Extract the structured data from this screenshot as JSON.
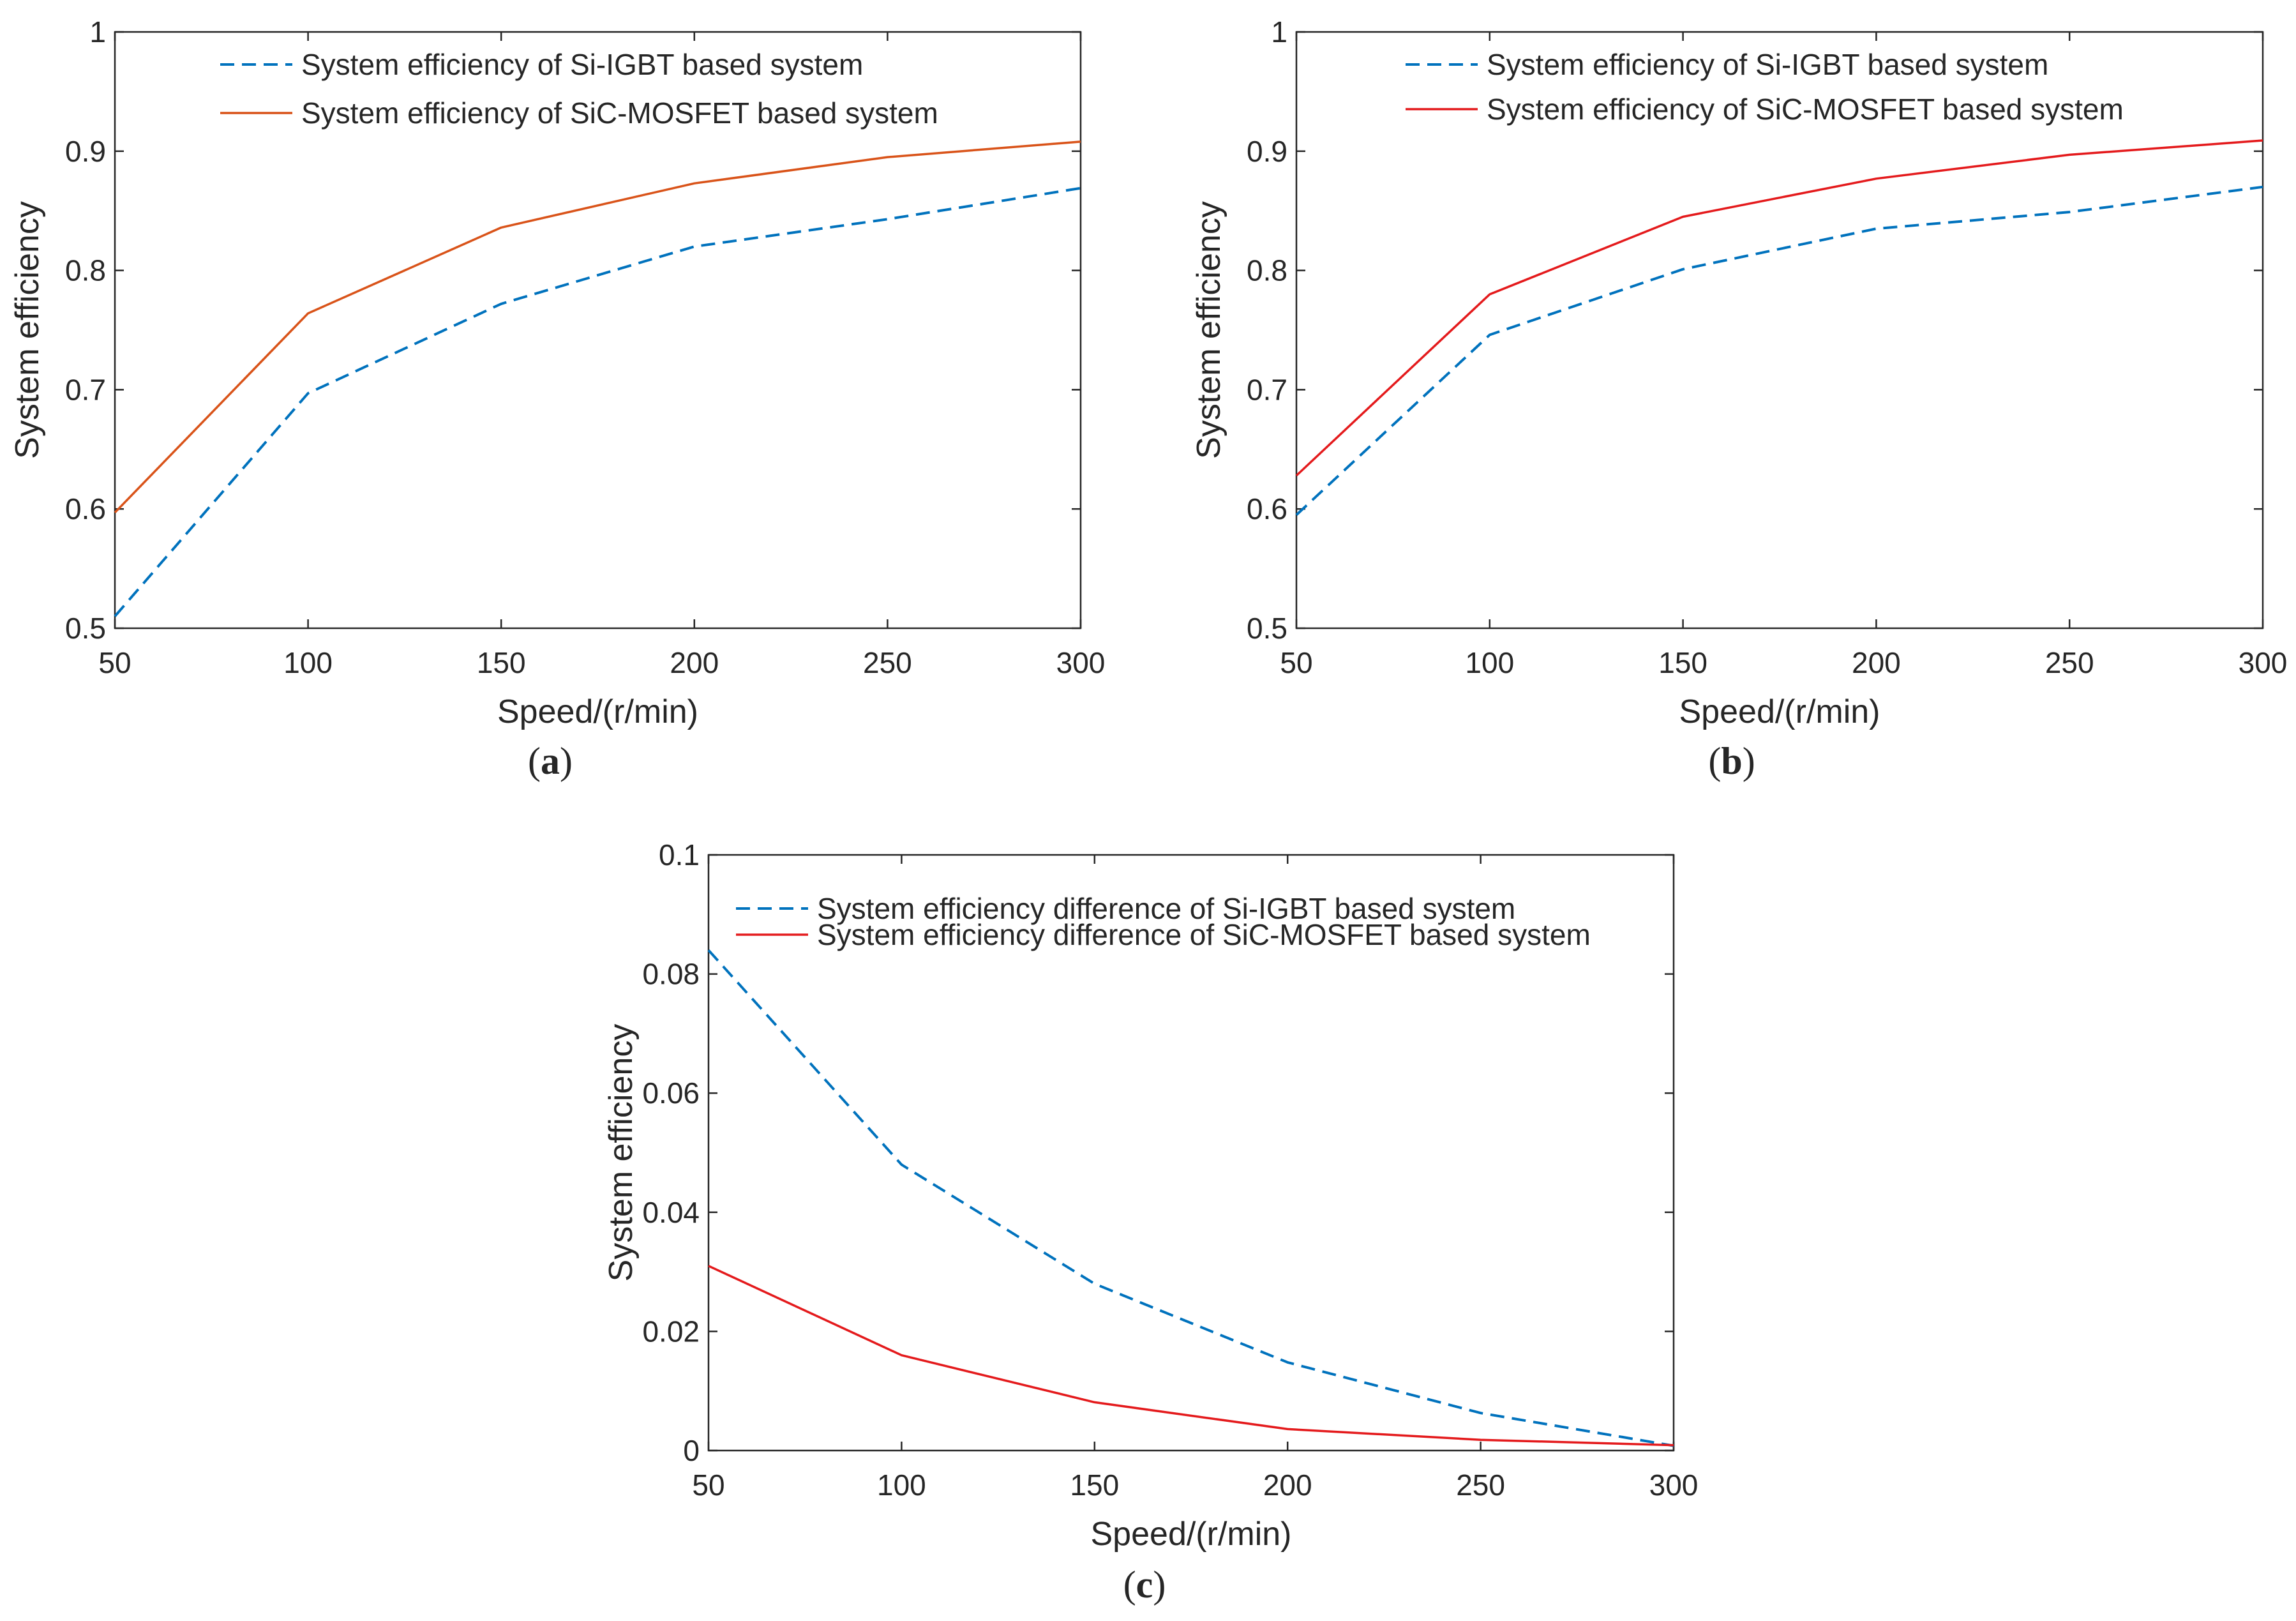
{
  "chart_data": [
    {
      "id": "a",
      "type": "line",
      "panel_label": "a",
      "xlabel": "Speed/(r/min)",
      "ylabel": "System efficiency",
      "xlim": [
        50,
        300
      ],
      "ylim": [
        0.5,
        1
      ],
      "xticks": [
        50,
        100,
        150,
        200,
        250,
        300
      ],
      "xtick_labels": [
        "50",
        "100",
        "150",
        "200",
        "250",
        "300"
      ],
      "yticks": [
        0.5,
        0.6,
        0.7,
        0.8,
        0.9,
        1
      ],
      "ytick_labels": [
        "0.5",
        "0.6",
        "0.7",
        "0.8",
        "0.9",
        "1"
      ],
      "legend_position": "top-left",
      "x": [
        50,
        100,
        150,
        200,
        250,
        300
      ],
      "series": [
        {
          "name": "System efficiency of Si-IGBT based system",
          "color": "#0072BD",
          "style": "dashed",
          "values": [
            0.51,
            0.697,
            0.772,
            0.82,
            0.843,
            0.869
          ]
        },
        {
          "name": "System efficiency of SiC-MOSFET based system",
          "color": "#D95319",
          "style": "solid",
          "values": [
            0.597,
            0.764,
            0.836,
            0.873,
            0.895,
            0.908
          ]
        }
      ]
    },
    {
      "id": "b",
      "type": "line",
      "panel_label": "b",
      "xlabel": "Speed/(r/min)",
      "ylabel": "System efficiency",
      "xlim": [
        50,
        300
      ],
      "ylim": [
        0.5,
        1
      ],
      "xticks": [
        50,
        100,
        150,
        200,
        250,
        300
      ],
      "xtick_labels": [
        "50",
        "100",
        "150",
        "200",
        "250",
        "300"
      ],
      "yticks": [
        0.5,
        0.6,
        0.7,
        0.8,
        0.9,
        1
      ],
      "ytick_labels": [
        "0.5",
        "0.6",
        "0.7",
        "0.8",
        "0.9",
        "1"
      ],
      "legend_position": "top-left",
      "x": [
        50,
        100,
        150,
        200,
        250,
        300
      ],
      "series": [
        {
          "name": "System efficiency of Si-IGBT based system",
          "color": "#0072BD",
          "style": "dashed",
          "values": [
            0.595,
            0.746,
            0.801,
            0.835,
            0.849,
            0.87
          ]
        },
        {
          "name": "System efficiency of SiC-MOSFET based system",
          "color": "#E41A1C",
          "style": "solid",
          "values": [
            0.628,
            0.78,
            0.845,
            0.877,
            0.897,
            0.909
          ]
        }
      ]
    },
    {
      "id": "c",
      "type": "line",
      "panel_label": "c",
      "xlabel": "Speed/(r/min)",
      "ylabel": "System efficiency",
      "xlim": [
        50,
        300
      ],
      "ylim": [
        0,
        0.1
      ],
      "xticks": [
        50,
        100,
        150,
        200,
        250,
        300
      ],
      "xtick_labels": [
        "50",
        "100",
        "150",
        "200",
        "250",
        "300"
      ],
      "yticks": [
        0,
        0.02,
        0.04,
        0.06,
        0.08,
        0.1
      ],
      "ytick_labels": [
        "0",
        "0.02",
        "0.04",
        "0.06",
        "0.08",
        "0.1"
      ],
      "legend_position": "top-left",
      "x": [
        50,
        100,
        150,
        200,
        250,
        300
      ],
      "series": [
        {
          "name": "System efficiency difference of Si-IGBT based system",
          "color": "#0072BD",
          "style": "dashed",
          "values": [
            0.084,
            0.048,
            0.028,
            0.0148,
            0.0063,
            0.0008
          ]
        },
        {
          "name": "System efficiency difference of SiC-MOSFET based system",
          "color": "#E41A1C",
          "style": "solid",
          "values": [
            0.031,
            0.016,
            0.0081,
            0.0036,
            0.0018,
            0.0009
          ]
        }
      ]
    }
  ]
}
